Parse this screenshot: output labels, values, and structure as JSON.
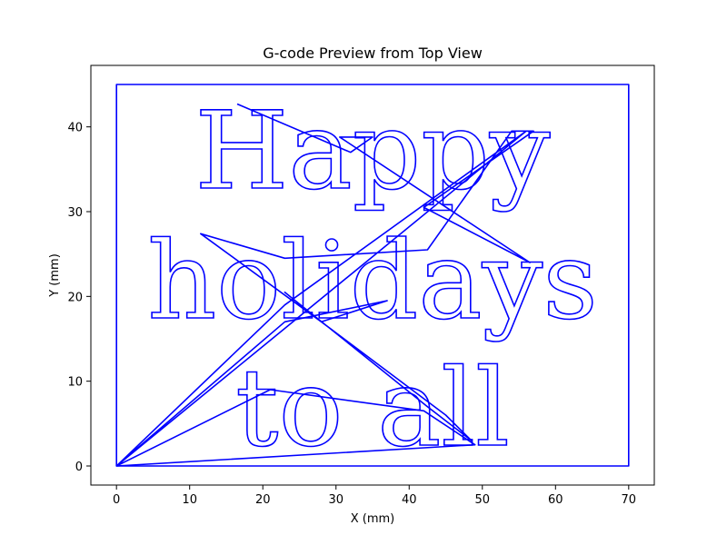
{
  "chart_data": {
    "type": "line",
    "title": "G-code Preview from Top View",
    "xlabel": "X (mm)",
    "ylabel": "Y (mm)",
    "xlim": [
      -3.5,
      73.5
    ],
    "ylim": [
      -2.25,
      47.25
    ],
    "xticks": [
      0,
      10,
      20,
      30,
      40,
      50,
      60,
      70
    ],
    "yticks": [
      0,
      10,
      20,
      30,
      40
    ],
    "grid": false,
    "line_color": "#0000ff",
    "engraved_text": [
      "Happy",
      "holidays",
      "to all"
    ],
    "series": [
      {
        "x": [
          0,
          70,
          70,
          0,
          0
        ],
        "y": [
          0,
          0,
          45,
          45,
          0
        ]
      },
      {
        "x": [
          16.5,
          32,
          35,
          30.5,
          56.5,
          42,
          57,
          54,
          42.5,
          23,
          11.5,
          28,
          23,
          42.5,
          48.5,
          45,
          28,
          37,
          23,
          0,
          21,
          42,
          49,
          0,
          23,
          56,
          0
        ],
        "y": [
          42.7,
          37,
          38.8,
          38.8,
          24,
          30.5,
          39.5,
          39.5,
          25.5,
          24.5,
          27.4,
          17,
          20.5,
          7,
          3,
          6,
          17,
          19.5,
          17,
          0,
          9,
          6.5,
          2.5,
          0,
          19,
          39.5,
          0
        ]
      }
    ]
  }
}
